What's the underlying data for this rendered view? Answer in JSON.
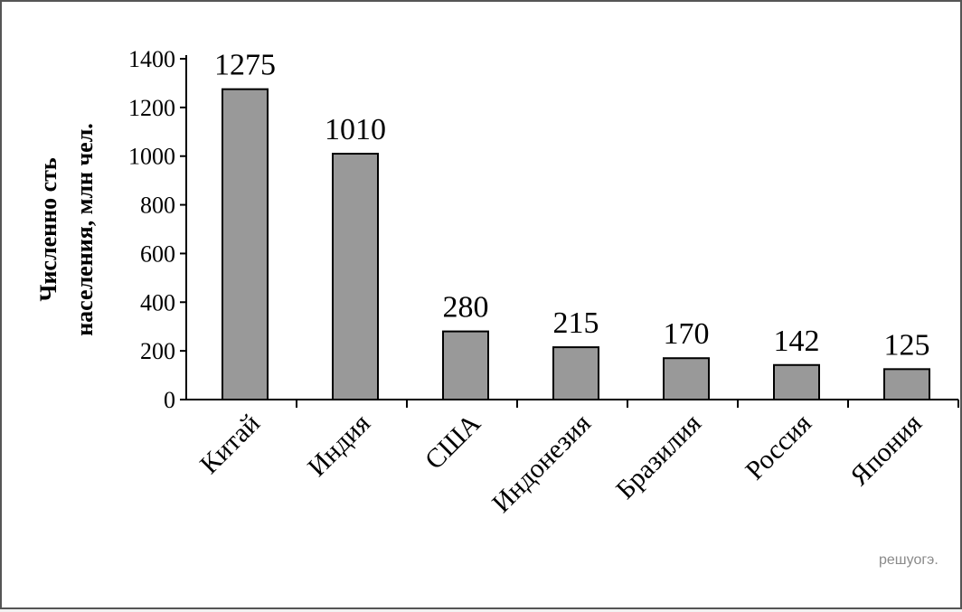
{
  "chart_data": {
    "type": "bar",
    "title": "",
    "ylabel": [
      "Численно сть",
      "населения, млн чел."
    ],
    "xlabel": "",
    "categories": [
      "Китай",
      "Индия",
      "США",
      "Индонезия",
      "Бразилия",
      "Россия",
      "Япония"
    ],
    "values": [
      1275,
      1010,
      280,
      215,
      170,
      142,
      125
    ],
    "data_labels": [
      "1275",
      "1010",
      "280",
      "215",
      "170",
      "142",
      "125"
    ],
    "ylim": [
      0,
      1400
    ],
    "yticks": [
      0,
      200,
      400,
      600,
      800,
      1000,
      1200,
      1400
    ],
    "grid": false,
    "legend": "none",
    "bar_color": "#999999",
    "bar_border_color": "#000000"
  },
  "watermark": "решуогэ."
}
